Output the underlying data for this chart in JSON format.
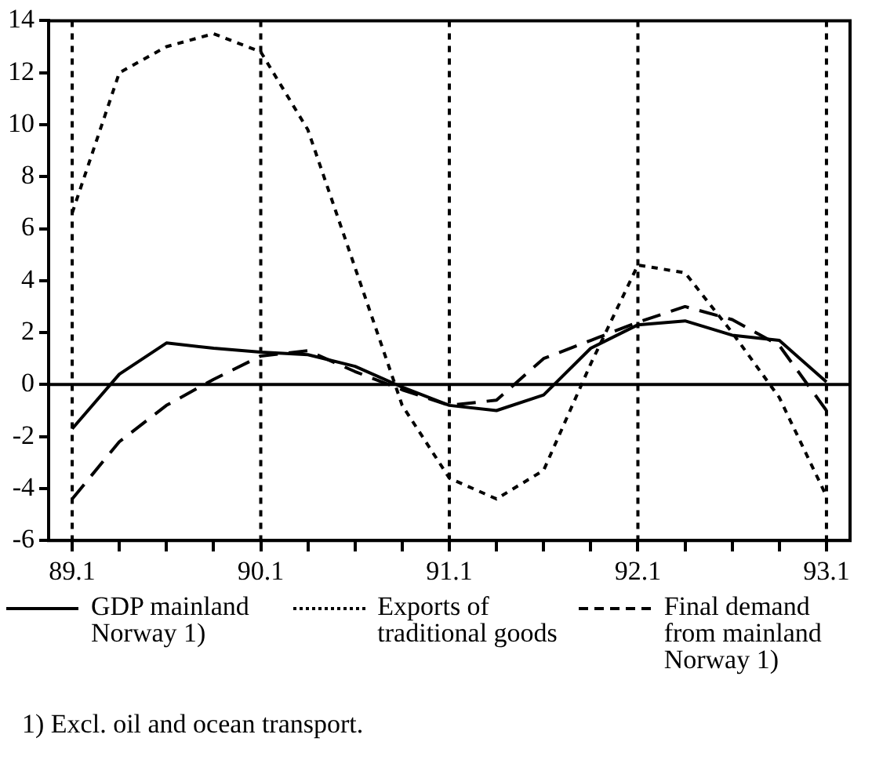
{
  "chart_data": {
    "type": "line",
    "categories": [
      "89.1",
      null,
      null,
      null,
      "90.1",
      null,
      null,
      null,
      "91.1",
      null,
      null,
      null,
      "92.1",
      null,
      null,
      null,
      "93.1"
    ],
    "series": [
      {
        "name": "GDP mainland Norway 1)",
        "color": "#000000",
        "line_style": "solid",
        "values": [
          -1.7,
          0.4,
          1.6,
          1.4,
          1.25,
          1.15,
          0.7,
          -0.1,
          -0.8,
          -1.0,
          -0.4,
          1.4,
          2.3,
          2.45,
          1.9,
          1.7,
          0.1
        ]
      },
      {
        "name": "Exports of traditional goods",
        "color": "#000000",
        "line_style": "dotted",
        "values": [
          6.6,
          12,
          13,
          13.5,
          12.8,
          9.8,
          4.5,
          -0.8,
          -3.6,
          -4.4,
          -3.3,
          0.8,
          4.6,
          4.3,
          2.0,
          -0.5,
          -4.3
        ]
      },
      {
        "name": "Final demand from mainland Norway 1)",
        "color": "#000000",
        "line_style": "dashed",
        "values": [
          -4.4,
          -2.2,
          -0.8,
          0.2,
          1.1,
          1.3,
          0.5,
          -0.2,
          -0.8,
          -0.6,
          1.0,
          1.7,
          2.4,
          3.0,
          2.5,
          1.5,
          -1.0
        ]
      }
    ],
    "ylim": [
      -6,
      14
    ],
    "yticks": [
      -6,
      -4,
      -2,
      0,
      2,
      4,
      6,
      8,
      10,
      12,
      14
    ],
    "ref_lines": [
      {
        "axis": "x",
        "value": "89.1",
        "label": null,
        "line_style": "dotted"
      },
      {
        "axis": "x",
        "value": "90.1",
        "label": null,
        "line_style": "dotted"
      },
      {
        "axis": "x",
        "value": "91.1",
        "label": null,
        "line_style": "dotted"
      },
      {
        "axis": "x",
        "value": "92.1",
        "label": null,
        "line_style": "dotted"
      },
      {
        "axis": "x",
        "value": "93.1",
        "label": null,
        "line_style": "dotted"
      },
      {
        "axis": "y",
        "value": 0,
        "label": null,
        "line_style": "solid"
      }
    ],
    "legend": "bottom",
    "marker": "none",
    "annotations": [
      "1) Excl. oil and ocean transport."
    ]
  }
}
